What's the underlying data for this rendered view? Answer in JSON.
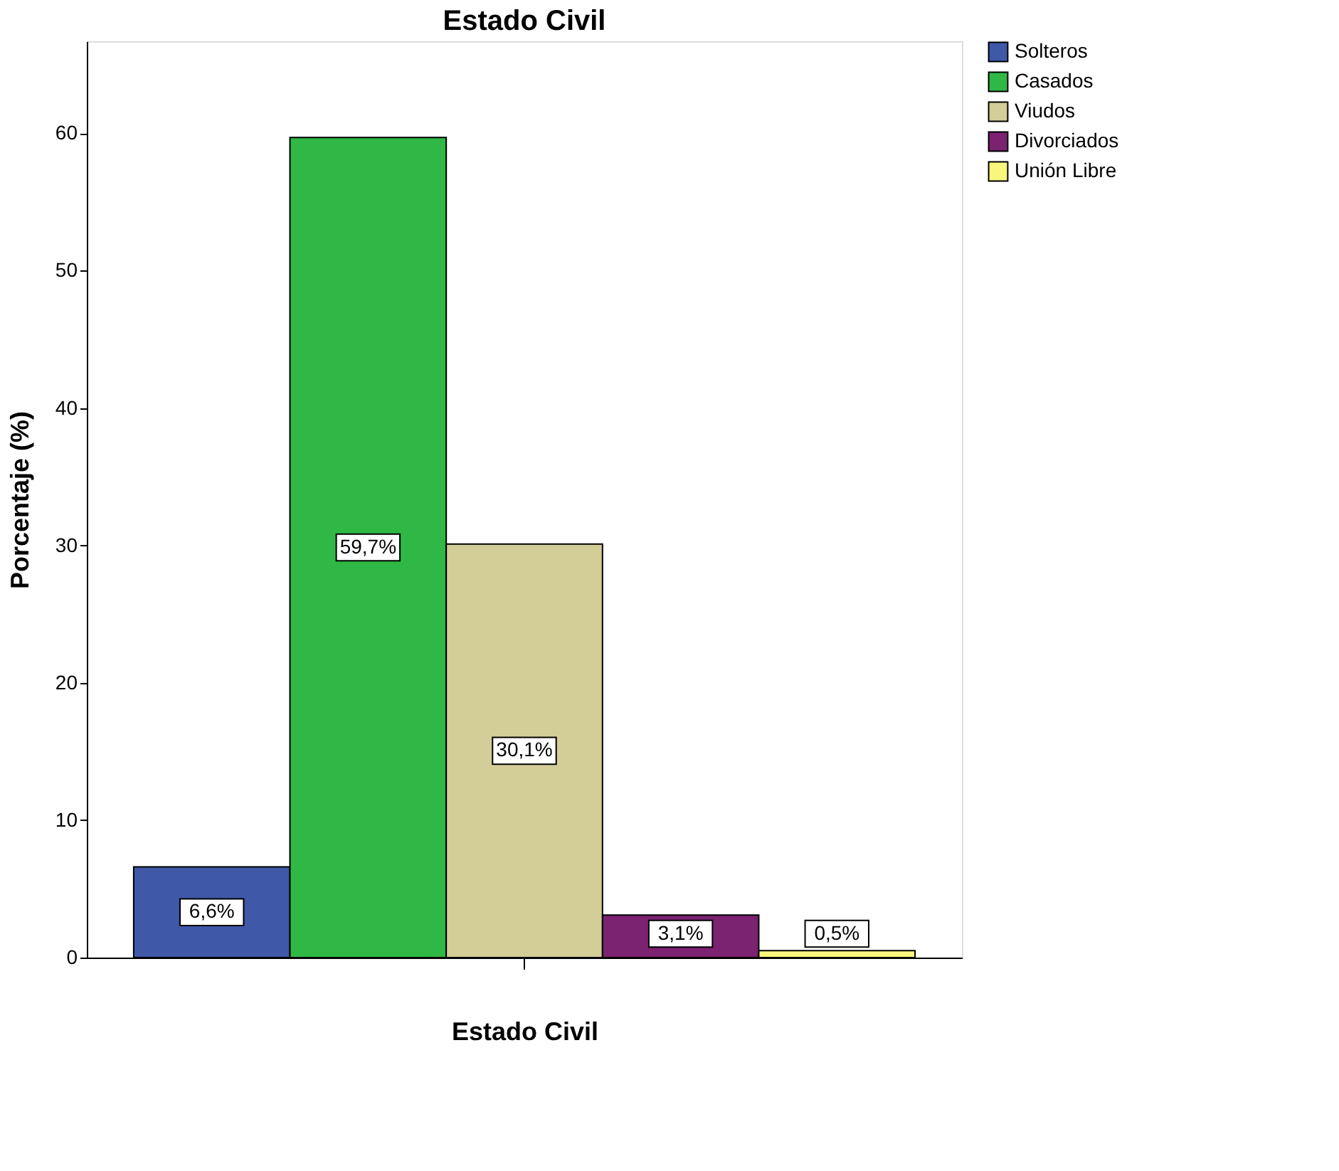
{
  "chart_data": {
    "type": "bar",
    "title": "Estado Civil",
    "xlabel": "Estado Civil",
    "ylabel": "Porcentaje (%)",
    "categories": [
      null
    ],
    "series": [
      {
        "name": "Solteros",
        "color": "#3f58a8",
        "values": [
          6.6
        ],
        "value_labels": [
          "6,6%"
        ]
      },
      {
        "name": "Casados",
        "color": "#2fb846",
        "values": [
          59.7
        ],
        "value_labels": [
          "59,7%"
        ]
      },
      {
        "name": "Viudos",
        "color": "#d3ce98",
        "values": [
          30.1
        ],
        "value_labels": [
          "30,1%"
        ]
      },
      {
        "name": "Divorciados",
        "color": "#7b2271",
        "values": [
          3.1
        ],
        "value_labels": [
          "3,1%"
        ]
      },
      {
        "name": "Unión Libre",
        "color": "#f8f67c",
        "values": [
          0.5
        ],
        "value_labels": [
          "0,5%"
        ]
      }
    ],
    "ylim": [
      0,
      66.7
    ],
    "yticks": [
      0,
      10,
      20,
      30,
      40,
      50,
      60
    ],
    "grid": false,
    "legend": "top right",
    "tick_labels": "y"
  }
}
